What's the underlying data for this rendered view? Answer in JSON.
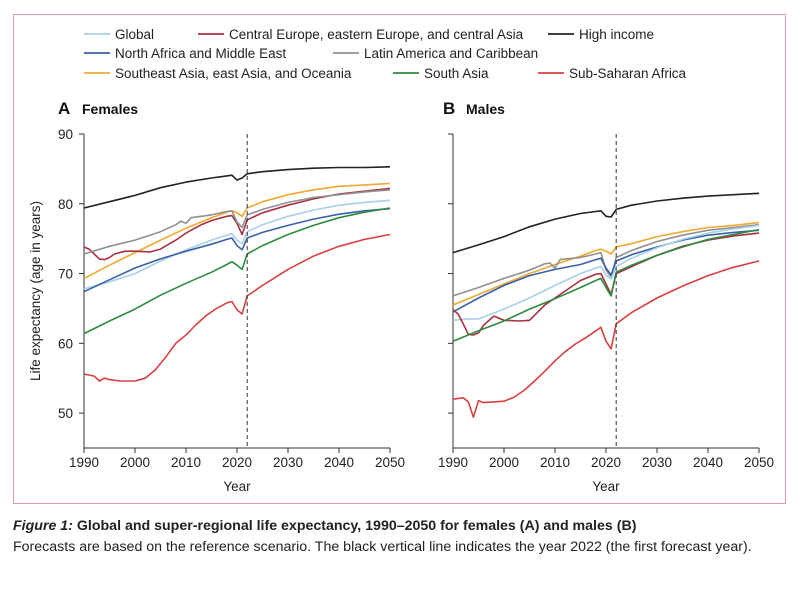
{
  "chart_data": [
    {
      "type": "line",
      "panel_letter": "A",
      "title": "Females",
      "xlabel": "Year",
      "ylabel": "Life expectancy (age in years)",
      "xlim": [
        1990,
        2050
      ],
      "ylim": [
        45,
        90
      ],
      "xticks": [
        1990,
        2000,
        2010,
        2020,
        2030,
        2040,
        2050
      ],
      "yticks": [
        50,
        60,
        70,
        80,
        90
      ],
      "forecast_line_year": 2022,
      "series": [
        {
          "name": "High income",
          "color": "#222222",
          "x": [
            1990,
            1995,
            2000,
            2005,
            2010,
            2015,
            2018,
            2019,
            2020,
            2021,
            2022,
            2025,
            2030,
            2035,
            2040,
            2045,
            2050
          ],
          "values": [
            79.4,
            80.3,
            81.2,
            82.3,
            83.1,
            83.7,
            84.0,
            84.1,
            83.4,
            83.7,
            84.3,
            84.6,
            84.9,
            85.1,
            85.2,
            85.2,
            85.3
          ]
        },
        {
          "name": "Southeast Asia, east Asia, and Oceania",
          "color": "#f0a830",
          "x": [
            1990,
            1995,
            2000,
            2005,
            2010,
            2015,
            2018,
            2019,
            2020,
            2021,
            2022,
            2025,
            2030,
            2035,
            2040,
            2045,
            2050
          ],
          "values": [
            69.3,
            71.2,
            73.0,
            74.8,
            76.5,
            78.0,
            78.8,
            79.0,
            78.7,
            78.2,
            79.4,
            80.3,
            81.3,
            82.0,
            82.5,
            82.7,
            82.9
          ]
        },
        {
          "name": "Central Europe, eastern Europe, and central Asia",
          "color": "#a83040",
          "x": [
            1990,
            1991,
            1992,
            1993,
            1994,
            1995,
            1996,
            1998,
            2000,
            2003,
            2005,
            2008,
            2010,
            2013,
            2015,
            2018,
            2019,
            2020,
            2021,
            2022,
            2025,
            2030,
            2035,
            2040,
            2045,
            2050
          ],
          "values": [
            73.8,
            73.5,
            72.8,
            72.1,
            72.0,
            72.3,
            72.8,
            73.2,
            73.2,
            73.1,
            73.5,
            74.8,
            75.8,
            77.0,
            77.6,
            78.2,
            78.3,
            77.2,
            75.6,
            77.7,
            78.7,
            79.8,
            80.7,
            81.4,
            81.8,
            82.2
          ]
        },
        {
          "name": "Latin America and Caribbean",
          "color": "#909090",
          "x": [
            1990,
            1995,
            2000,
            2005,
            2008,
            2009,
            2010,
            2011,
            2015,
            2018,
            2019,
            2020,
            2021,
            2022,
            2025,
            2030,
            2035,
            2040,
            2045,
            2050
          ],
          "values": [
            72.8,
            73.9,
            74.8,
            76.0,
            77.0,
            77.5,
            77.2,
            78.0,
            78.4,
            78.9,
            79.0,
            77.4,
            76.6,
            78.4,
            79.2,
            80.2,
            80.9,
            81.3,
            81.7,
            82.0
          ]
        },
        {
          "name": "Global",
          "color": "#a8d0e8",
          "x": [
            1990,
            1995,
            2000,
            2005,
            2010,
            2015,
            2018,
            2019,
            2020,
            2021,
            2022,
            2025,
            2030,
            2035,
            2040,
            2045,
            2050
          ],
          "values": [
            67.8,
            68.8,
            70.0,
            71.8,
            73.4,
            74.8,
            75.5,
            75.7,
            74.8,
            74.3,
            76.0,
            77.0,
            78.2,
            79.1,
            79.8,
            80.2,
            80.5
          ]
        },
        {
          "name": "North Africa and Middle East",
          "color": "#3a62a8",
          "x": [
            1990,
            1995,
            2000,
            2005,
            2010,
            2015,
            2018,
            2019,
            2020,
            2021,
            2022,
            2025,
            2030,
            2035,
            2040,
            2045,
            2050
          ],
          "values": [
            67.4,
            69.1,
            70.8,
            72.1,
            73.2,
            74.2,
            74.9,
            75.1,
            74.0,
            73.4,
            75.1,
            75.9,
            76.9,
            77.8,
            78.5,
            79.0,
            79.3
          ]
        },
        {
          "name": "South Asia",
          "color": "#2e8a3e",
          "x": [
            1990,
            1995,
            2000,
            2005,
            2010,
            2015,
            2018,
            2019,
            2020,
            2021,
            2022,
            2025,
            2030,
            2035,
            2040,
            2045,
            2050
          ],
          "values": [
            61.4,
            63.2,
            64.9,
            66.9,
            68.6,
            70.2,
            71.3,
            71.7,
            71.2,
            70.6,
            72.8,
            74.0,
            75.6,
            76.9,
            78.0,
            78.8,
            79.4
          ]
        },
        {
          "name": "Sub-Saharan Africa",
          "color": "#d84040",
          "x": [
            1990,
            1992,
            1993,
            1994,
            1995,
            1997,
            2000,
            2002,
            2004,
            2006,
            2008,
            2010,
            2012,
            2014,
            2016,
            2018,
            2019,
            2020,
            2021,
            2022,
            2025,
            2030,
            2035,
            2040,
            2045,
            2050
          ],
          "values": [
            55.6,
            55.3,
            54.6,
            55.0,
            54.8,
            54.6,
            54.6,
            55.0,
            56.2,
            58.0,
            60.0,
            61.2,
            62.7,
            64.0,
            65.0,
            65.8,
            66.0,
            64.8,
            64.2,
            66.8,
            68.3,
            70.6,
            72.5,
            73.9,
            74.9,
            75.6
          ]
        }
      ]
    },
    {
      "type": "line",
      "panel_letter": "B",
      "title": "Males",
      "xlabel": "Year",
      "ylabel": "",
      "xlim": [
        1990,
        2050
      ],
      "ylim": [
        45,
        90
      ],
      "xticks": [
        1990,
        2000,
        2010,
        2020,
        2030,
        2040,
        2050
      ],
      "yticks": [
        50,
        60,
        70,
        80,
        90
      ],
      "forecast_line_year": 2022,
      "series": [
        {
          "name": "High income",
          "color": "#222222",
          "x": [
            1990,
            1995,
            2000,
            2005,
            2010,
            2015,
            2018,
            2019,
            2020,
            2021,
            2022,
            2025,
            2030,
            2035,
            2040,
            2045,
            2050
          ],
          "values": [
            73.0,
            74.1,
            75.3,
            76.7,
            77.8,
            78.6,
            78.9,
            79.0,
            78.2,
            78.1,
            79.2,
            79.8,
            80.4,
            80.8,
            81.1,
            81.3,
            81.5
          ]
        },
        {
          "name": "Southeast Asia, east Asia, and Oceania",
          "color": "#f0a830",
          "x": [
            1990,
            1995,
            2000,
            2005,
            2010,
            2015,
            2018,
            2019,
            2020,
            2021,
            2022,
            2025,
            2030,
            2035,
            2040,
            2045,
            2050
          ],
          "values": [
            65.5,
            67.0,
            68.5,
            70.0,
            71.3,
            72.5,
            73.3,
            73.5,
            73.2,
            72.8,
            73.8,
            74.3,
            75.3,
            76.0,
            76.6,
            76.9,
            77.3
          ]
        },
        {
          "name": "Latin America and Caribbean",
          "color": "#909090",
          "x": [
            1990,
            1995,
            2000,
            2005,
            2008,
            2009,
            2010,
            2011,
            2015,
            2018,
            2019,
            2020,
            2021,
            2022,
            2025,
            2030,
            2035,
            2040,
            2045,
            2050
          ],
          "values": [
            66.8,
            68.0,
            69.3,
            70.5,
            71.4,
            71.5,
            70.8,
            72.0,
            72.3,
            72.8,
            73.0,
            70.5,
            69.5,
            72.3,
            73.3,
            74.6,
            75.5,
            76.2,
            76.6,
            77.0
          ]
        },
        {
          "name": "North Africa and Middle East",
          "color": "#3a62a8",
          "x": [
            1990,
            1995,
            2000,
            2005,
            2010,
            2015,
            2018,
            2019,
            2020,
            2021,
            2022,
            2025,
            2030,
            2035,
            2040,
            2045,
            2050
          ],
          "values": [
            64.5,
            66.5,
            68.3,
            69.7,
            70.6,
            71.3,
            72.0,
            72.2,
            70.8,
            69.8,
            71.8,
            72.7,
            73.8,
            74.8,
            75.5,
            75.9,
            76.2
          ]
        },
        {
          "name": "Global",
          "color": "#a8d0e8",
          "x": [
            1990,
            1993,
            1995,
            2000,
            2005,
            2010,
            2015,
            2018,
            2019,
            2020,
            2021,
            2022,
            2025,
            2030,
            2035,
            2040,
            2045,
            2050
          ],
          "values": [
            63.3,
            63.5,
            63.5,
            64.9,
            66.5,
            68.3,
            70.0,
            70.8,
            71.0,
            69.8,
            69.2,
            71.0,
            72.2,
            73.7,
            74.9,
            75.8,
            76.4,
            76.9
          ]
        },
        {
          "name": "Central Europe, eastern Europe, and central Asia",
          "color": "#a83040",
          "x": [
            1990,
            1991,
            1992,
            1993,
            1994,
            1995,
            1996,
            1998,
            2000,
            2003,
            2005,
            2008,
            2010,
            2013,
            2015,
            2018,
            2019,
            2020,
            2021,
            2022,
            2025,
            2030,
            2035,
            2040,
            2045,
            2050
          ],
          "values": [
            64.8,
            64.2,
            62.8,
            61.3,
            61.2,
            61.5,
            62.6,
            63.9,
            63.3,
            63.2,
            63.3,
            65.5,
            66.5,
            68.0,
            69.0,
            69.9,
            70.0,
            68.5,
            67.0,
            70.0,
            71.0,
            72.6,
            73.9,
            74.8,
            75.4,
            75.8
          ]
        },
        {
          "name": "South Asia",
          "color": "#2e8a3e",
          "x": [
            1990,
            1995,
            2000,
            2005,
            2010,
            2015,
            2018,
            2019,
            2020,
            2021,
            2022,
            2025,
            2030,
            2035,
            2040,
            2045,
            2050
          ],
          "values": [
            60.3,
            61.8,
            63.2,
            64.9,
            66.4,
            68.0,
            69.0,
            69.3,
            68.0,
            66.8,
            70.2,
            71.2,
            72.6,
            73.8,
            74.9,
            75.6,
            76.3
          ]
        },
        {
          "name": "Sub-Saharan Africa",
          "color": "#d84040",
          "x": [
            1990,
            1992,
            1993,
            1994,
            1995,
            1996,
            1998,
            2000,
            2002,
            2004,
            2006,
            2008,
            2010,
            2012,
            2014,
            2016,
            2018,
            2019,
            2020,
            2021,
            2022,
            2025,
            2030,
            2035,
            2040,
            2045,
            2050
          ],
          "values": [
            52.0,
            52.2,
            51.6,
            49.4,
            51.8,
            51.5,
            51.6,
            51.7,
            52.3,
            53.3,
            54.6,
            56.0,
            57.5,
            58.8,
            59.9,
            60.8,
            61.8,
            62.3,
            60.3,
            59.2,
            62.8,
            64.4,
            66.5,
            68.2,
            69.7,
            70.9,
            71.8
          ]
        }
      ]
    }
  ],
  "legend": [
    {
      "label": "Global",
      "color": "#a8d0e8"
    },
    {
      "label": "Central Europe, eastern Europe, and central Asia",
      "color": "#a83040"
    },
    {
      "label": "High income",
      "color": "#222222"
    },
    {
      "label": "North Africa and Middle East",
      "color": "#3a62a8"
    },
    {
      "label": "Latin America and Caribbean",
      "color": "#909090"
    },
    {
      "label": "Southeast Asia, east Asia, and Oceania",
      "color": "#f0a830"
    },
    {
      "label": "South Asia",
      "color": "#2e8a3e"
    },
    {
      "label": "Sub-Saharan Africa",
      "color": "#d84040"
    }
  ],
  "caption": {
    "figure_label": "Figure 1:",
    "title": " Global and super-regional life expectancy, 1990–2050 for females (A) and males (B)",
    "text": "Forecasts are based on the reference scenario. The black vertical line indicates the year 2022 (the first forecast year)."
  },
  "colors": {
    "frame_border": "#d8a0a8",
    "axis": "#333333",
    "forecast_line": "#333333"
  }
}
